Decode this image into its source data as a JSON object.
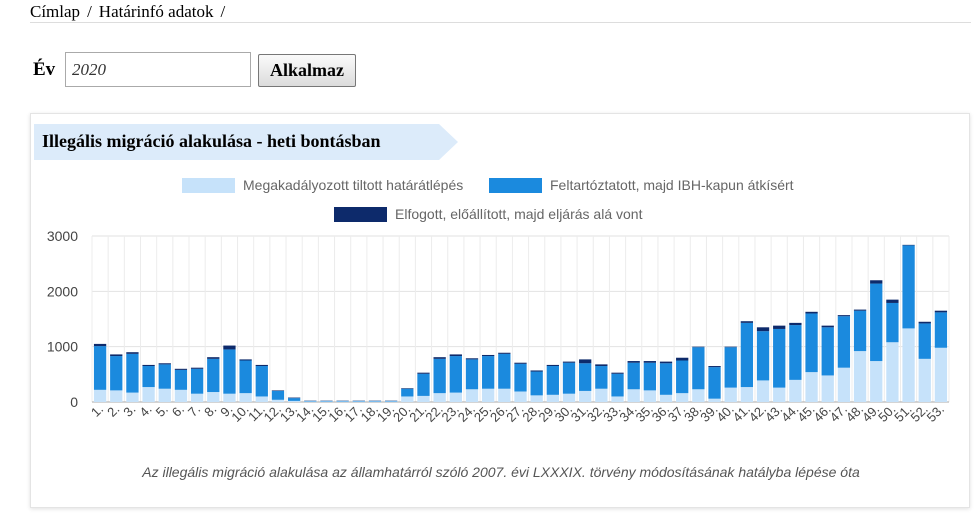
{
  "breadcrumb": {
    "home": "Címlap",
    "current": "Határinfó adatok",
    "separator": "/"
  },
  "filter": {
    "year_label": "Év",
    "year_value": "2020",
    "apply_label": "Alkalmaz"
  },
  "panel": {
    "title": "Illegális migráció alakulása - heti bontásban"
  },
  "colors": {
    "light": "#c6e2fa",
    "mid": "#1b8ade",
    "dark": "#0d2a6b",
    "title_bg": "#dcebfa"
  },
  "chart_data": {
    "type": "bar",
    "stacked": true,
    "categories": [
      "1.",
      "2.",
      "3.",
      "4.",
      "5.",
      "6.",
      "7.",
      "8.",
      "9.",
      "10.",
      "11.",
      "12.",
      "13.",
      "14.",
      "15.",
      "16.",
      "17.",
      "18.",
      "19.",
      "20.",
      "21.",
      "22.",
      "23.",
      "24.",
      "25.",
      "26.",
      "27.",
      "28.",
      "29.",
      "30.",
      "31.",
      "32.",
      "33.",
      "34.",
      "35.",
      "36.",
      "37.",
      "38.",
      "39.",
      "40.",
      "41.",
      "42.",
      "43.",
      "44.",
      "45.",
      "46.",
      "47.",
      "48.",
      "49.",
      "50.",
      "51.",
      "52.",
      "53."
    ],
    "series": [
      {
        "name": "Megakadályozott tiltott határátlépés",
        "values": [
          220,
          210,
          170,
          270,
          240,
          220,
          150,
          180,
          150,
          160,
          100,
          40,
          20,
          10,
          10,
          10,
          10,
          10,
          10,
          100,
          110,
          160,
          170,
          230,
          240,
          240,
          190,
          120,
          130,
          150,
          200,
          240,
          100,
          230,
          210,
          130,
          160,
          230,
          60,
          260,
          270,
          390,
          260,
          400,
          540,
          480,
          620,
          920,
          740,
          1080,
          1330,
          780,
          980
        ]
      },
      {
        "name": "Feltartóztatott, majd IBH-kapun átkísért",
        "values": [
          790,
          620,
          700,
          380,
          440,
          360,
          450,
          600,
          800,
          590,
          550,
          160,
          50,
          10,
          10,
          10,
          10,
          10,
          10,
          140,
          400,
          620,
          660,
          540,
          590,
          630,
          500,
          430,
          520,
          560,
          500,
          410,
          410,
          480,
          500,
          570,
          590,
          760,
          570,
          730,
          1160,
          890,
          1060,
          990,
          1060,
          870,
          930,
          730,
          1400,
          710,
          1500,
          640,
          640
        ]
      },
      {
        "name": "Elfogott, előállított, majd eljárás alá vont",
        "values": [
          40,
          30,
          30,
          20,
          20,
          20,
          20,
          30,
          70,
          20,
          20,
          10,
          10,
          5,
          5,
          5,
          5,
          5,
          5,
          10,
          20,
          30,
          30,
          20,
          20,
          20,
          20,
          20,
          20,
          20,
          70,
          30,
          20,
          30,
          30,
          30,
          50,
          10,
          20,
          10,
          30,
          70,
          60,
          40,
          30,
          30,
          20,
          20,
          60,
          60,
          10,
          30,
          30
        ]
      }
    ],
    "ylim": [
      0,
      3000
    ],
    "yticks": [
      0,
      1000,
      2000,
      3000
    ],
    "grid": true,
    "legend_position": "top",
    "caption": "Az illegális migráció alakulása az államhatárról szóló 2007. évi LXXXIX. törvény módosításának hatályba lépése óta"
  }
}
